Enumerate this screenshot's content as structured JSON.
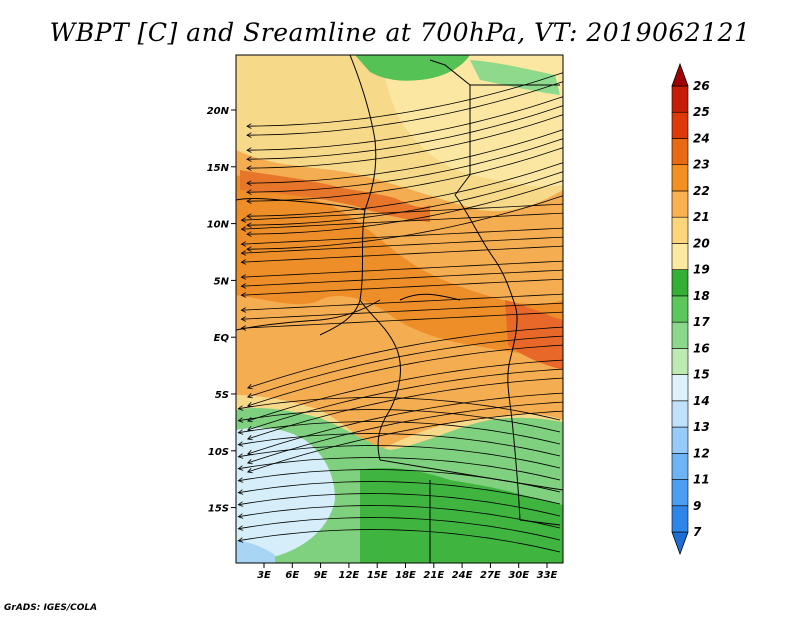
{
  "title": "WBPT [C] and Sreamline at 700hPa, VT: 2019062121",
  "credit": "GrADS: IGES/COLA",
  "map": {
    "lat_labels": [
      "20N",
      "15N",
      "10N",
      "5N",
      "EQ",
      "5S",
      "10S",
      "15S"
    ],
    "lon_labels": [
      "3E",
      "6E",
      "9E",
      "12E",
      "15E",
      "18E",
      "21E",
      "24E",
      "27E",
      "30E",
      "33E"
    ]
  },
  "colorbar": {
    "labels": [
      "7",
      "9",
      "11",
      "12",
      "13",
      "14",
      "15",
      "16",
      "17",
      "18",
      "19",
      "20",
      "21",
      "22",
      "23",
      "24",
      "25",
      "26"
    ],
    "colors": [
      "#1e6ed8",
      "#2f86e8",
      "#4a9df0",
      "#6cb4f5",
      "#96cbf8",
      "#bfe1fb",
      "#def2fb",
      "#bdeab3",
      "#8ad98a",
      "#5cc85c",
      "#33b033",
      "#fde9a0",
      "#fdd57a",
      "#f9b24f",
      "#f39020",
      "#e86a12",
      "#dc3a0a",
      "#c41e07",
      "#a00000"
    ]
  }
}
